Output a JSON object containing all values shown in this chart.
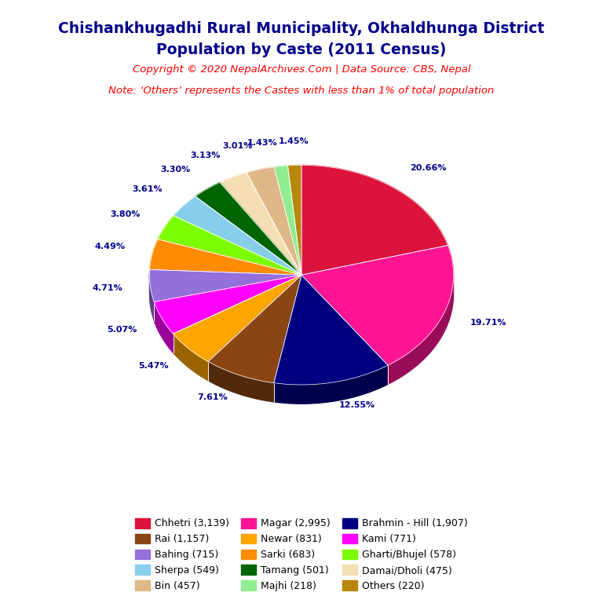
{
  "title_line1": "Chishankhugadhi Rural Municipality, Okhaldhunga District",
  "title_line2": "Population by Caste (2011 Census)",
  "copyright": "Copyright © 2020 NepalArchives.Com | Data Source: CBS, Nepal",
  "note": "Note: ‘Others’ represents the Castes with less than 1% of total population",
  "title_color": "#00008B",
  "copyright_color": "#FF0000",
  "note_color": "#FF0000",
  "labels": [
    "Chhetri (3,139)",
    "Magar (2,995)",
    "Brahmin - Hill (1,907)",
    "Rai (1,157)",
    "Newar (831)",
    "Kami (771)",
    "Bahing (715)",
    "Sarki (683)",
    "Gharti/Bhujel (578)",
    "Sherpa (549)",
    "Tamang (501)",
    "Damai/Dholi (475)",
    "Bin (457)",
    "Majhi (218)",
    "Others (220)"
  ],
  "values": [
    3139,
    2995,
    1907,
    1157,
    831,
    771,
    715,
    683,
    578,
    549,
    501,
    475,
    457,
    218,
    220
  ],
  "pie_colors": [
    "#DC143C",
    "#FF1493",
    "#000080",
    "#8B4513",
    "#FFA500",
    "#FF00FF",
    "#9370DB",
    "#FF8C00",
    "#7CFC00",
    "#87CEEB",
    "#006400",
    "#F5DEB3",
    "#DEB887",
    "#90EE90",
    "#B8860B"
  ],
  "percentages": [
    "20.66%",
    "19.71%",
    "12.55%",
    "7.61%",
    "5.47%",
    "5.07%",
    "4.71%",
    "4.49%",
    "3.80%",
    "3.61%",
    "3.30%",
    "3.13%",
    "3.01%",
    "1.43%",
    "1.45%"
  ],
  "background_color": "#FFFFFF",
  "label_color": "#00008B"
}
